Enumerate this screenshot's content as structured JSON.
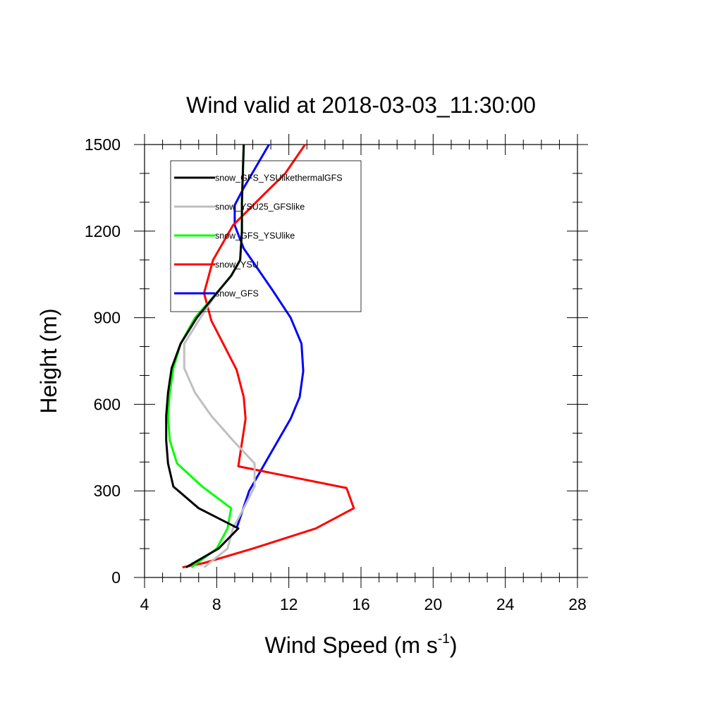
{
  "chart_data": {
    "type": "line",
    "title": "Wind valid at 2018-03-03_11:30:00",
    "xlabel": "Wind Speed (m s",
    "xlabel_superscript": "-1",
    "xlabel_suffix": ")",
    "ylabel": "Height (m)",
    "xlim": [
      4,
      28
    ],
    "ylim": [
      0,
      1500
    ],
    "x_ticks": [
      4,
      8,
      12,
      16,
      20,
      24,
      28
    ],
    "y_ticks": [
      0,
      300,
      600,
      900,
      1200,
      1500
    ],
    "grid": false,
    "legend_position": "top-left",
    "series": [
      {
        "name": "snow_GFS_YSUlikethermalGFS",
        "color": "#000000",
        "points": [
          [
            6.3,
            35
          ],
          [
            8.1,
            100
          ],
          [
            9.2,
            170
          ],
          [
            7.0,
            240
          ],
          [
            5.6,
            315
          ],
          [
            5.3,
            395
          ],
          [
            5.2,
            475
          ],
          [
            5.2,
            560
          ],
          [
            5.3,
            640
          ],
          [
            5.5,
            725
          ],
          [
            6.0,
            810
          ],
          [
            6.9,
            900
          ],
          [
            8.0,
            985
          ],
          [
            8.8,
            1045
          ],
          [
            9.3,
            1100
          ],
          [
            9.4,
            1200
          ],
          [
            9.4,
            1300
          ],
          [
            9.5,
            1500
          ]
        ]
      },
      {
        "name": "snow_YSU25_GFSlike",
        "color": "#bfbfbf",
        "points": [
          [
            7.3,
            35
          ],
          [
            8.6,
            100
          ],
          [
            8.9,
            170
          ],
          [
            9.5,
            240
          ],
          [
            10.1,
            315
          ],
          [
            10.1,
            395
          ],
          [
            8.9,
            475
          ],
          [
            7.7,
            560
          ],
          [
            6.8,
            640
          ],
          [
            6.2,
            725
          ],
          [
            6.2,
            810
          ],
          [
            7.1,
            900
          ],
          [
            8.0,
            985
          ],
          [
            8.8,
            1045
          ],
          [
            9.3,
            1100
          ],
          [
            9.4,
            1200
          ],
          [
            9.4,
            1300
          ],
          [
            9.5,
            1500
          ]
        ]
      },
      {
        "name": "snow_GFS_YSUlike",
        "color": "#00ff00",
        "points": [
          [
            6.6,
            35
          ],
          [
            8.0,
            100
          ],
          [
            8.6,
            170
          ],
          [
            8.8,
            240
          ],
          [
            7.2,
            315
          ],
          [
            5.8,
            395
          ],
          [
            5.4,
            475
          ],
          [
            5.3,
            560
          ],
          [
            5.4,
            640
          ],
          [
            5.6,
            725
          ],
          [
            6.0,
            810
          ],
          [
            6.8,
            900
          ],
          [
            8.0,
            985
          ],
          [
            8.8,
            1045
          ],
          [
            9.3,
            1100
          ],
          [
            9.4,
            1200
          ],
          [
            9.4,
            1300
          ],
          [
            9.5,
            1500
          ]
        ]
      },
      {
        "name": "snow_YSU",
        "color": "#ff0000",
        "points": [
          [
            6.1,
            35
          ],
          [
            7.3,
            50
          ],
          [
            10.0,
            100
          ],
          [
            13.5,
            170
          ],
          [
            15.6,
            240
          ],
          [
            15.2,
            310
          ],
          [
            9.2,
            385
          ],
          [
            9.6,
            550
          ],
          [
            9.5,
            625
          ],
          [
            9.1,
            720
          ],
          [
            7.7,
            890
          ],
          [
            7.3,
            985
          ],
          [
            7.8,
            1100
          ],
          [
            8.9,
            1220
          ],
          [
            10.5,
            1320
          ],
          [
            11.8,
            1400
          ],
          [
            12.9,
            1500
          ]
        ]
      },
      {
        "name": "snow_GFS",
        "color": "#0000ff",
        "points": [
          [
            9.1,
            170
          ],
          [
            9.8,
            300
          ],
          [
            10.9,
            420
          ],
          [
            12.1,
            550
          ],
          [
            12.6,
            625
          ],
          [
            12.8,
            715
          ],
          [
            12.7,
            810
          ],
          [
            12.1,
            900
          ],
          [
            11.1,
            995
          ],
          [
            9.5,
            1140
          ],
          [
            9.0,
            1220
          ],
          [
            9.0,
            1290
          ],
          [
            9.5,
            1350
          ],
          [
            10.9,
            1500
          ]
        ]
      }
    ]
  }
}
